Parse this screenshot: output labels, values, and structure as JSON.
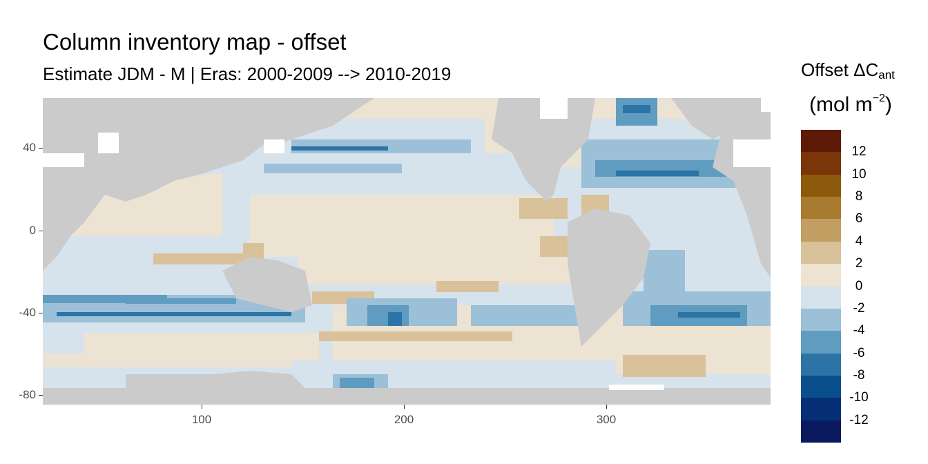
{
  "header": {
    "title": "Column inventory map - offset",
    "subtitle": "Estimate JDM - M | Eras: 2000-2009 --> 2010-2019"
  },
  "legend": {
    "title_main": "Offset ΔC",
    "title_sub": "ant",
    "unit_prefix": "(mol m",
    "unit_sup": "−2",
    "unit_suffix": ")",
    "breaks": [
      {
        "label": "12",
        "color": "#5c1a07"
      },
      {
        "label": "10",
        "color": "#7a3508"
      },
      {
        "label": "8",
        "color": "#8c5a0a"
      },
      {
        "label": "6",
        "color": "#a97b30"
      },
      {
        "label": "4",
        "color": "#c29e62"
      },
      {
        "label": "2",
        "color": "#d9c29a"
      },
      {
        "label": "0",
        "color": "#ece3d3"
      },
      {
        "label": "-2",
        "color": "#d7e3ec"
      },
      {
        "label": "-4",
        "color": "#9cc0d7"
      },
      {
        "label": "-6",
        "color": "#5f9cc0"
      },
      {
        "label": "-8",
        "color": "#2c74a6"
      },
      {
        "label": "-10",
        "color": "#094f8c"
      },
      {
        "label": "-12",
        "color": "#052f75"
      },
      {
        "label": "",
        "color": "#0b1a5e"
      }
    ]
  },
  "axes": {
    "x_ticks": [
      "100",
      "200",
      "300"
    ],
    "y_ticks": [
      "40",
      "0",
      "-40",
      "-80"
    ],
    "x_range": [
      20,
      380
    ],
    "y_range": [
      -85,
      65
    ]
  },
  "colors": {
    "land": "#cbcbcb",
    "ice_gap": "#ffffff"
  }
}
